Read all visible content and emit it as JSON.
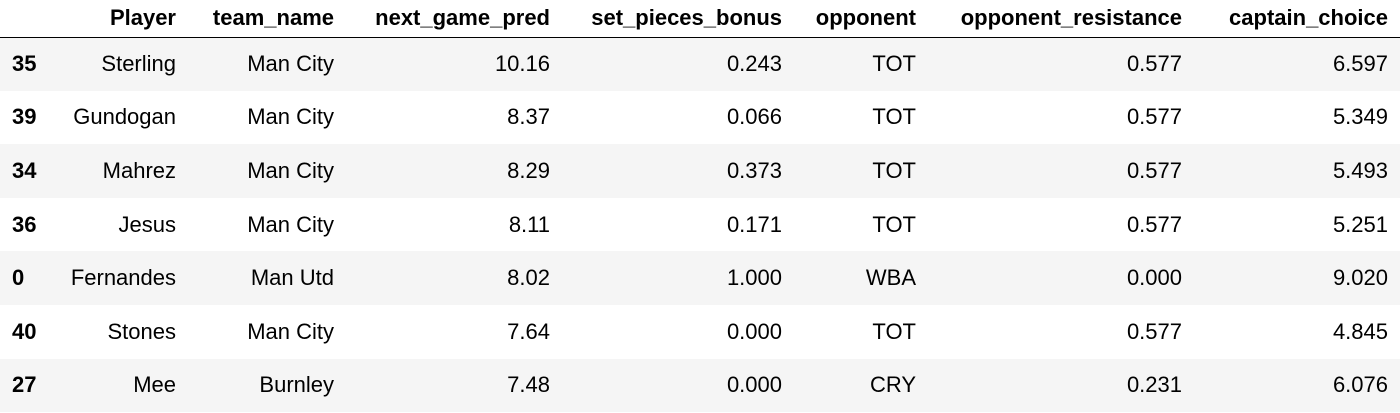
{
  "table": {
    "index_header": "",
    "columns": [
      "Player",
      "team_name",
      "next_game_pred",
      "set_pieces_bonus",
      "opponent",
      "opponent_resistance",
      "captain_choice"
    ],
    "rows": [
      {
        "index": "35",
        "cells": [
          "Sterling",
          "Man City",
          "10.16",
          "0.243",
          "TOT",
          "0.577",
          "6.597"
        ]
      },
      {
        "index": "39",
        "cells": [
          "Gundogan",
          "Man City",
          "8.37",
          "0.066",
          "TOT",
          "0.577",
          "5.349"
        ]
      },
      {
        "index": "34",
        "cells": [
          "Mahrez",
          "Man City",
          "8.29",
          "0.373",
          "TOT",
          "0.577",
          "5.493"
        ]
      },
      {
        "index": "36",
        "cells": [
          "Jesus",
          "Man City",
          "8.11",
          "0.171",
          "TOT",
          "0.577",
          "5.251"
        ]
      },
      {
        "index": "0",
        "cells": [
          "Fernandes",
          "Man Utd",
          "8.02",
          "1.000",
          "WBA",
          "0.000",
          "9.020"
        ]
      },
      {
        "index": "40",
        "cells": [
          "Stones",
          "Man City",
          "7.64",
          "0.000",
          "TOT",
          "0.577",
          "4.845"
        ]
      },
      {
        "index": "27",
        "cells": [
          "Mee",
          "Burnley",
          "7.48",
          "0.000",
          "CRY",
          "0.231",
          "6.076"
        ]
      }
    ]
  }
}
